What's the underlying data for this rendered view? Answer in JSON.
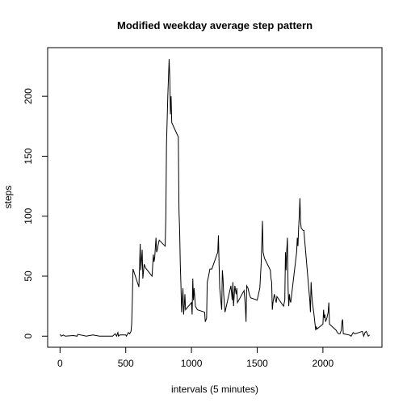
{
  "chart_data": {
    "type": "line",
    "title": "Modified weekday average step pattern",
    "x_label": "intervals (5 minutes)",
    "y_label": "steps",
    "xlim": [
      -94.2,
      2449.2
    ],
    "ylim": [
      -9.24,
      240.5
    ],
    "xticks": [
      0,
      500,
      1000,
      1500,
      2000
    ],
    "yticks": [
      0,
      50,
      100,
      150,
      200
    ],
    "series": [
      {
        "color": "#000000",
        "x": [
          0,
          10,
          25,
          40,
          100,
          130,
          135,
          200,
          250,
          300,
          400,
          420,
          430,
          440,
          445,
          455,
          500,
          505,
          520,
          530,
          540,
          545,
          550,
          555,
          600,
          610,
          615,
          625,
          630,
          640,
          650,
          700,
          710,
          715,
          720,
          730,
          735,
          740,
          750,
          755,
          800,
          805,
          810,
          815,
          820,
          830,
          835,
          840,
          845,
          850,
          900,
          905,
          910,
          915,
          920,
          925,
          930,
          935,
          940,
          945,
          950,
          955,
          1000,
          1005,
          1010,
          1015,
          1020,
          1030,
          1045,
          1100,
          1105,
          1115,
          1120,
          1130,
          1140,
          1155,
          1200,
          1205,
          1210,
          1215,
          1230,
          1235,
          1240,
          1245,
          1255,
          1300,
          1310,
          1315,
          1320,
          1330,
          1340,
          1345,
          1350,
          1400,
          1410,
          1415,
          1420,
          1430,
          1440,
          1450,
          1500,
          1520,
          1530,
          1540,
          1545,
          1555,
          1600,
          1605,
          1610,
          1615,
          1620,
          1630,
          1640,
          1645,
          1650,
          1700,
          1710,
          1715,
          1720,
          1725,
          1730,
          1735,
          1740,
          1745,
          1750,
          1755,
          1800,
          1805,
          1810,
          1815,
          1820,
          1825,
          1830,
          1835,
          1850,
          1855,
          1900,
          1905,
          1910,
          1915,
          1920,
          1930,
          1940,
          1945,
          1950,
          1955,
          2000,
          2005,
          2010,
          2015,
          2020,
          2030,
          2040,
          2045,
          2050,
          2100,
          2110,
          2120,
          2130,
          2140,
          2145,
          2150,
          2155,
          2200,
          2215,
          2230,
          2245,
          2300,
          2310,
          2320,
          2330,
          2345,
          2355
        ],
        "values": [
          1.5,
          0,
          1,
          0,
          0.5,
          0,
          1.5,
          0,
          1,
          0,
          0,
          2,
          0,
          3,
          0,
          1,
          1,
          0,
          3,
          2,
          4,
          10,
          30,
          56,
          41,
          77,
          55,
          72,
          48,
          60,
          57,
          50,
          68,
          62,
          65,
          82,
          70,
          72,
          78,
          80,
          75,
          100,
          160,
          180,
          200,
          231,
          215,
          185,
          200,
          178,
          166,
          105,
          88,
          60,
          42,
          20,
          30,
          40,
          18,
          25,
          35,
          22,
          28,
          18,
          48,
          30,
          40,
          25,
          22,
          20,
          12,
          15,
          45,
          50,
          56,
          56,
          70,
          84,
          60,
          40,
          22,
          55,
          48,
          35,
          20,
          42,
          30,
          45,
          25,
          42,
          35,
          40,
          28,
          38,
          25,
          12,
          42,
          40,
          35,
          32,
          30,
          40,
          60,
          96,
          70,
          65,
          55,
          48,
          45,
          22,
          28,
          35,
          30,
          28,
          33,
          25,
          30,
          70,
          55,
          72,
          82,
          40,
          25,
          35,
          30,
          28,
          70,
          82,
          75,
          90,
          100,
          115,
          95,
          90,
          88,
          88,
          30,
          20,
          45,
          35,
          28,
          20,
          10,
          5,
          8,
          6,
          10,
          22,
          15,
          18,
          12,
          15,
          20,
          28,
          10,
          5,
          3,
          2,
          2,
          5,
          12,
          14,
          2,
          1,
          0,
          3,
          2,
          4,
          0,
          3,
          4,
          0,
          1
        ]
      }
    ]
  }
}
